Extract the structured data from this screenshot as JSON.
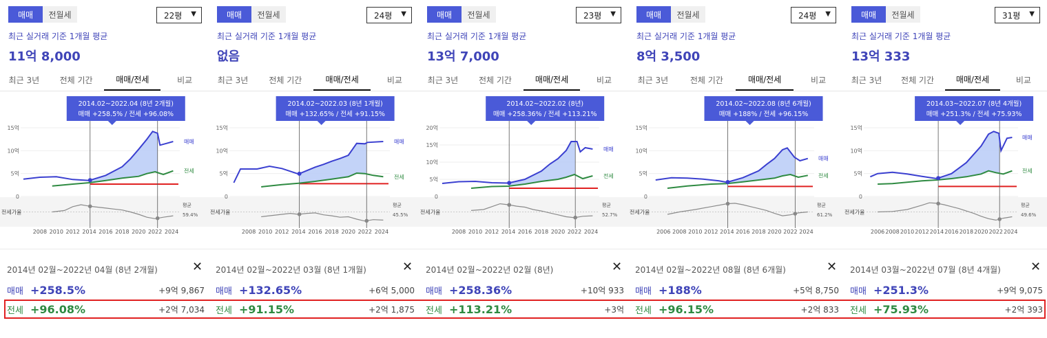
{
  "common": {
    "toggle": [
      "매매",
      "전월세"
    ],
    "subtitle": "최근 실거래 기준 1개월 평균",
    "tabs": [
      "최근 3년",
      "전체 기간",
      "매매/전세",
      "비교"
    ],
    "active_tab": 2,
    "side_labels": {
      "sale": "매매",
      "jeonse": "전세"
    },
    "ratio_label": "전세가율",
    "avg_label": "평균",
    "row_labels": {
      "sale": "매매",
      "jeonse": "전세"
    },
    "close_symbol": "✕",
    "colors": {
      "sale": "#3a3fd0",
      "jeonse": "#2e8a41",
      "fill": "#b9cbf7",
      "ratio": "#8a8a8a",
      "redline": "#e02020",
      "accent": "#4a5ad8"
    }
  },
  "panels": [
    {
      "size": "22평",
      "price": "11억 8,000",
      "tooltip_line1": "2014.02~2022.04 (8년 2개월)",
      "tooltip_line2": "매매 +258.5%  /  전세 +96.08%",
      "avg_value": "59.4%",
      "period": "2014년 02월~2022년 04월 (8년 2개월)",
      "sale_pct": "+258.5%",
      "sale_amt": "+9억 9,867",
      "jeonse_pct": "+96.08%",
      "jeonse_amt": "+2억 7,034",
      "chart_data": {
        "type": "line",
        "x_ticks": [
          "2008",
          "2010",
          "2012",
          "2014",
          "2016",
          "2018",
          "2020",
          "2022",
          "2024"
        ],
        "x_range": [
          2006,
          2025
        ],
        "y_ticks": [
          "15억",
          "10억",
          "5억",
          "0"
        ],
        "y_range": [
          0,
          15
        ],
        "sale": [
          [
            2006,
            3.8
          ],
          [
            2008,
            4.2
          ],
          [
            2010,
            4.3
          ],
          [
            2012,
            3.7
          ],
          [
            2014,
            3.5
          ],
          [
            2016,
            4.6
          ],
          [
            2018,
            6.5
          ],
          [
            2019,
            8.2
          ],
          [
            2020,
            10.3
          ],
          [
            2021,
            12.5
          ],
          [
            2021.7,
            14.2
          ],
          [
            2022.3,
            13.8
          ],
          [
            2022.6,
            11.2
          ],
          [
            2023.4,
            11.6
          ],
          [
            2024.2,
            12.0
          ]
        ],
        "jeonse": [
          [
            2009.5,
            2.3
          ],
          [
            2012,
            2.7
          ],
          [
            2014,
            3.0
          ],
          [
            2016,
            3.5
          ],
          [
            2018,
            4.0
          ],
          [
            2020,
            4.4
          ],
          [
            2021,
            5.0
          ],
          [
            2022,
            5.4
          ],
          [
            2023,
            4.8
          ],
          [
            2024.2,
            5.6
          ]
        ],
        "red_level": 2.7,
        "start": 2014.1,
        "end": 2022.3,
        "ratio": [
          [
            2009.5,
            55
          ],
          [
            2011,
            58
          ],
          [
            2012,
            66
          ],
          [
            2013,
            70
          ],
          [
            2014,
            67
          ],
          [
            2015,
            65
          ],
          [
            2016,
            63
          ],
          [
            2017,
            61
          ],
          [
            2018,
            59
          ],
          [
            2019,
            55
          ],
          [
            2020,
            50
          ],
          [
            2021,
            44
          ],
          [
            2022,
            41
          ],
          [
            2023,
            44
          ],
          [
            2024.2,
            47
          ]
        ]
      }
    },
    {
      "size": "24평",
      "price": "없음",
      "tooltip_line1": "2014.02~2022.03 (8년 1개월)",
      "tooltip_line2": "매매 +132.65%  /  전세 +91.15%",
      "avg_value": "45.5%",
      "period": "2014년 02월~2022년 03월 (8년 1개월)",
      "sale_pct": "+132.65%",
      "sale_amt": "+6억 5,000",
      "jeonse_pct": "+91.15%",
      "jeonse_amt": "+2억 1,875",
      "chart_data": {
        "type": "line",
        "x_ticks": [
          "2008",
          "2010",
          "2012",
          "2014",
          "2016",
          "2018",
          "2020",
          "2022",
          "2024"
        ],
        "x_range": [
          2006,
          2025
        ],
        "y_ticks": [
          "15억",
          "10억",
          "5억",
          "0"
        ],
        "y_range": [
          0,
          15
        ],
        "sale": [
          [
            2006.2,
            3.0
          ],
          [
            2007,
            6.0
          ],
          [
            2009,
            6.0
          ],
          [
            2010.5,
            6.6
          ],
          [
            2012,
            6.1
          ],
          [
            2014,
            4.9
          ],
          [
            2016,
            6.4
          ],
          [
            2017,
            7.0
          ],
          [
            2018,
            7.7
          ],
          [
            2019,
            8.3
          ],
          [
            2020,
            9.0
          ],
          [
            2021,
            11.6
          ],
          [
            2022,
            11.5
          ],
          [
            2022.3,
            11.8
          ],
          [
            2024.2,
            12.0
          ]
        ],
        "jeonse": [
          [
            2009.5,
            2.1
          ],
          [
            2012,
            2.6
          ],
          [
            2014,
            2.9
          ],
          [
            2016,
            3.3
          ],
          [
            2018,
            3.8
          ],
          [
            2020,
            4.3
          ],
          [
            2021,
            5.1
          ],
          [
            2022,
            5.0
          ],
          [
            2023,
            4.6
          ],
          [
            2024.2,
            4.3
          ]
        ],
        "red_level": 2.8,
        "start": 2014.1,
        "end": 2022.2,
        "ratio": [
          [
            2009.5,
            45
          ],
          [
            2011,
            48
          ],
          [
            2012,
            50
          ],
          [
            2013,
            52
          ],
          [
            2014,
            50
          ],
          [
            2015,
            52
          ],
          [
            2016,
            53
          ],
          [
            2017,
            49
          ],
          [
            2018,
            47
          ],
          [
            2019,
            44
          ],
          [
            2020,
            45
          ],
          [
            2021,
            40
          ],
          [
            2022,
            36
          ],
          [
            2023,
            39
          ],
          [
            2024.2,
            38
          ]
        ]
      }
    },
    {
      "size": "23평",
      "price": "13억 7,000",
      "tooltip_line1": "2014.02~2022.02 (8년)",
      "tooltip_line2": "매매 +258.36%  /  전세 +113.21%",
      "avg_value": "52.7%",
      "period": "2014년 02월~2022년 02월 (8년)",
      "sale_pct": "+258.36%",
      "sale_amt": "+10억 933",
      "jeonse_pct": "+113.21%",
      "jeonse_amt": "+3억",
      "chart_data": {
        "type": "line",
        "x_ticks": [
          "2008",
          "2010",
          "2012",
          "2014",
          "2016",
          "2018",
          "2020",
          "2022",
          "2024"
        ],
        "x_range": [
          2006,
          2025
        ],
        "y_ticks": [
          "20억",
          "15억",
          "10억",
          "5억",
          "0"
        ],
        "y_range": [
          0,
          20
        ],
        "sale": [
          [
            2006,
            3.8
          ],
          [
            2008,
            4.3
          ],
          [
            2010,
            4.4
          ],
          [
            2012,
            4.0
          ],
          [
            2014,
            3.9
          ],
          [
            2016,
            5.0
          ],
          [
            2018,
            7.4
          ],
          [
            2019,
            9.4
          ],
          [
            2020,
            11.0
          ],
          [
            2021,
            13.4
          ],
          [
            2021.6,
            16.0
          ],
          [
            2022.3,
            16.0
          ],
          [
            2022.7,
            13.0
          ],
          [
            2023.3,
            14.2
          ],
          [
            2024.2,
            13.8
          ]
        ],
        "jeonse": [
          [
            2009.5,
            2.4
          ],
          [
            2012,
            2.9
          ],
          [
            2014,
            3.0
          ],
          [
            2016,
            3.6
          ],
          [
            2018,
            4.4
          ],
          [
            2020,
            5.0
          ],
          [
            2021,
            5.6
          ],
          [
            2022,
            6.4
          ],
          [
            2023,
            5.2
          ],
          [
            2024.2,
            6.0
          ]
        ],
        "red_level": 2.4,
        "start": 2014.1,
        "end": 2022.1,
        "ratio": [
          [
            2009.5,
            58
          ],
          [
            2011,
            60
          ],
          [
            2012,
            66
          ],
          [
            2013,
            72
          ],
          [
            2014,
            70
          ],
          [
            2015,
            67
          ],
          [
            2016,
            65
          ],
          [
            2017,
            60
          ],
          [
            2018,
            57
          ],
          [
            2019,
            53
          ],
          [
            2020,
            49
          ],
          [
            2021,
            45
          ],
          [
            2022,
            43
          ],
          [
            2023,
            46
          ],
          [
            2024.2,
            47
          ]
        ]
      }
    },
    {
      "size": "24평",
      "price": "8억 3,500",
      "tooltip_line1": "2014.02~2022.08 (8년 6개월)",
      "tooltip_line2": "매매 +188%  /  전세 +96.15%",
      "avg_value": "61.2%",
      "period": "2014년 02월~2022년 08월 (8년 6개월)",
      "sale_pct": "+188%",
      "sale_amt": "+5억 8,750",
      "jeonse_pct": "+96.15%",
      "jeonse_amt": "+2억 833",
      "chart_data": {
        "type": "line",
        "x_ticks": [
          "2006",
          "2008",
          "2010",
          "2012",
          "2014",
          "2016",
          "2018",
          "2020",
          "2022",
          "2024"
        ],
        "x_range": [
          2004.5,
          2025
        ],
        "y_ticks": [
          "15억",
          "10억",
          "5억",
          "0"
        ],
        "y_range": [
          0,
          15
        ],
        "sale": [
          [
            2005,
            3.6
          ],
          [
            2007,
            4.1
          ],
          [
            2009,
            4.0
          ],
          [
            2011,
            3.8
          ],
          [
            2013,
            3.4
          ],
          [
            2014,
            3.1
          ],
          [
            2016,
            4.1
          ],
          [
            2018,
            5.6
          ],
          [
            2019,
            7.0
          ],
          [
            2020,
            8.3
          ],
          [
            2021,
            10.2
          ],
          [
            2021.6,
            10.6
          ],
          [
            2022.5,
            8.6
          ],
          [
            2023.2,
            7.8
          ],
          [
            2024.2,
            8.3
          ]
        ],
        "jeonse": [
          [
            2006.5,
            1.8
          ],
          [
            2009,
            2.3
          ],
          [
            2012,
            2.7
          ],
          [
            2014,
            2.8
          ],
          [
            2016,
            3.2
          ],
          [
            2018,
            3.6
          ],
          [
            2020,
            4.0
          ],
          [
            2021,
            4.5
          ],
          [
            2022,
            4.8
          ],
          [
            2023,
            4.2
          ],
          [
            2024.2,
            4.6
          ]
        ],
        "red_level": 2.2,
        "start": 2014.1,
        "end": 2022.6,
        "ratio": [
          [
            2006.5,
            50
          ],
          [
            2008,
            55
          ],
          [
            2010,
            60
          ],
          [
            2012,
            66
          ],
          [
            2014,
            72
          ],
          [
            2015,
            73
          ],
          [
            2016,
            70
          ],
          [
            2017,
            66
          ],
          [
            2018,
            62
          ],
          [
            2019,
            58
          ],
          [
            2020,
            52
          ],
          [
            2021,
            47
          ],
          [
            2022,
            49
          ],
          [
            2023,
            53
          ],
          [
            2024.2,
            55
          ]
        ]
      }
    },
    {
      "size": "31평",
      "price": "13억 333",
      "tooltip_line1": "2014.03~2022.07 (8년 4개월)",
      "tooltip_line2": "매매 +251.3%  /  전세 +75.93%",
      "avg_value": "49.6%",
      "period": "2014년 03월~2022년 07월 (8년 4개월)",
      "sale_pct": "+251.3%",
      "sale_amt": "+9억 9,075",
      "jeonse_pct": "+75.93%",
      "jeonse_amt": "+2억 393",
      "chart_data": {
        "type": "line",
        "x_ticks": [
          "2006",
          "2008",
          "2010",
          "2012",
          "2014",
          "2016",
          "2018",
          "2020",
          "2022",
          "2024"
        ],
        "x_range": [
          2004.5,
          2025
        ],
        "y_ticks": [
          "15억",
          "10억",
          "5억",
          "0"
        ],
        "y_range": [
          0,
          15
        ],
        "sale": [
          [
            2005,
            4.3
          ],
          [
            2006,
            5.0
          ],
          [
            2008,
            5.3
          ],
          [
            2010,
            4.9
          ],
          [
            2012,
            4.4
          ],
          [
            2014,
            3.9
          ],
          [
            2016,
            5.0
          ],
          [
            2018,
            7.4
          ],
          [
            2019,
            9.2
          ],
          [
            2020,
            11.0
          ],
          [
            2021,
            13.6
          ],
          [
            2021.7,
            14.2
          ],
          [
            2022.4,
            13.8
          ],
          [
            2022.7,
            10.0
          ],
          [
            2023.5,
            12.7
          ],
          [
            2024.2,
            12.9
          ]
        ],
        "jeonse": [
          [
            2006,
            2.7
          ],
          [
            2008,
            2.8
          ],
          [
            2010,
            3.1
          ],
          [
            2012,
            3.4
          ],
          [
            2014,
            3.6
          ],
          [
            2016,
            3.9
          ],
          [
            2018,
            4.3
          ],
          [
            2020,
            4.9
          ],
          [
            2021,
            5.6
          ],
          [
            2022,
            5.2
          ],
          [
            2023,
            4.9
          ],
          [
            2024.2,
            5.6
          ]
        ],
        "red_level": 2.2,
        "start": 2014.2,
        "end": 2022.5,
        "ratio": [
          [
            2006,
            55
          ],
          [
            2008,
            56
          ],
          [
            2010,
            60
          ],
          [
            2012,
            69
          ],
          [
            2013,
            74
          ],
          [
            2014,
            73
          ],
          [
            2015,
            70
          ],
          [
            2016,
            66
          ],
          [
            2017,
            62
          ],
          [
            2018,
            57
          ],
          [
            2019,
            52
          ],
          [
            2020,
            46
          ],
          [
            2021,
            41
          ],
          [
            2022,
            38
          ],
          [
            2023,
            42
          ],
          [
            2024.2,
            45
          ]
        ]
      }
    }
  ]
}
